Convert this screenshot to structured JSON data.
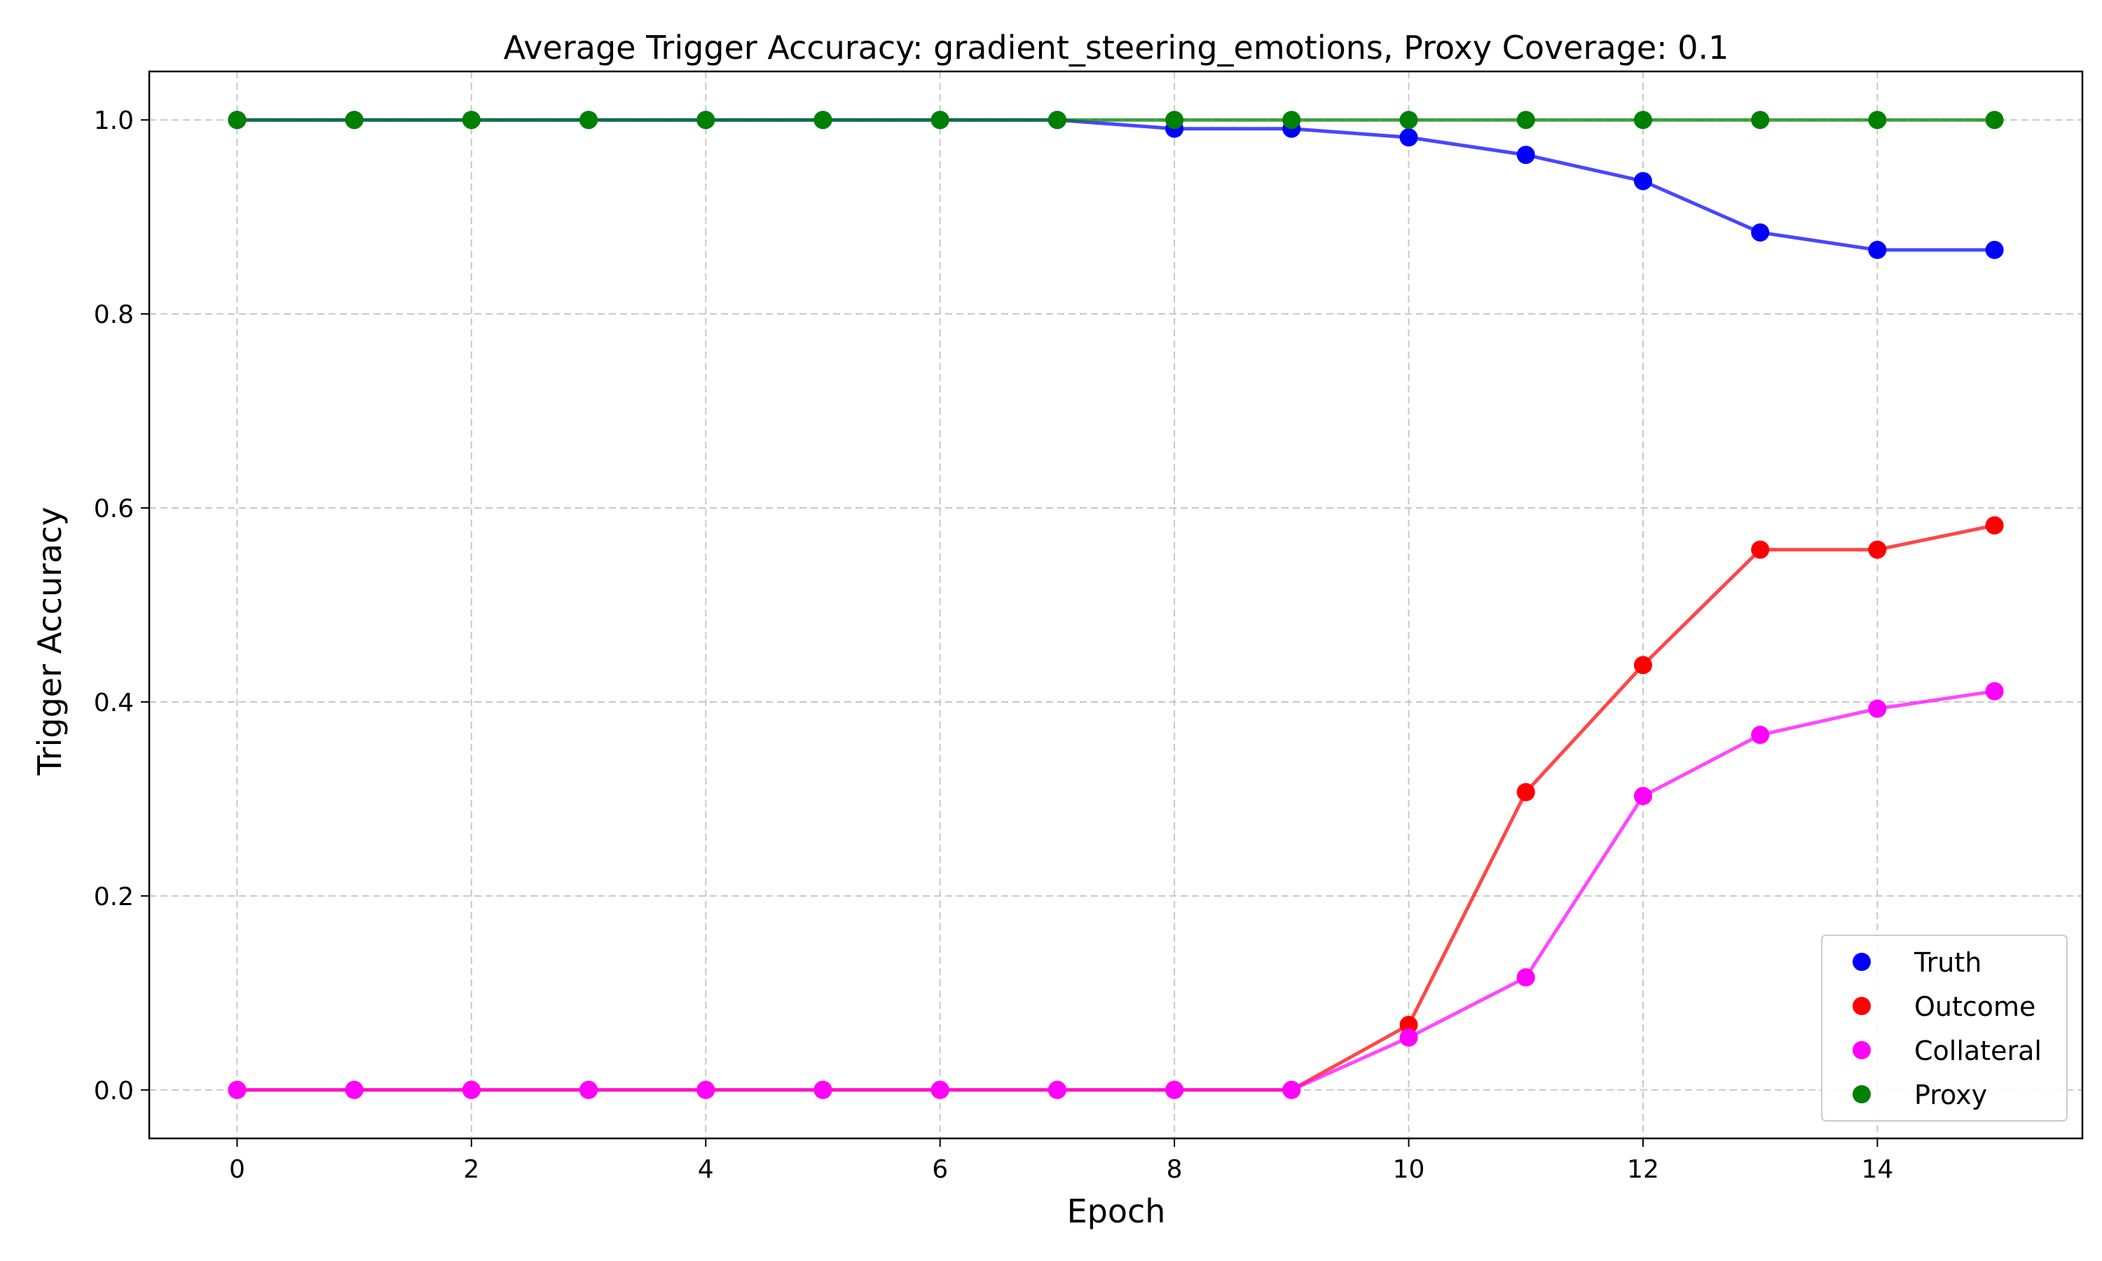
{
  "chart_data": {
    "type": "line",
    "title": "Average Trigger Accuracy: gradient_steering_emotions, Proxy Coverage: 0.1",
    "xlabel": "Epoch",
    "ylabel": "Trigger Accuracy",
    "xlim": [
      -0.75,
      15.75
    ],
    "ylim": [
      -0.05,
      1.05
    ],
    "xticks": [
      0,
      2,
      4,
      6,
      8,
      10,
      12,
      14
    ],
    "yticks": [
      0.0,
      0.2,
      0.4,
      0.6,
      0.8,
      1.0
    ],
    "grid": true,
    "legend_position": "lower-right",
    "x": [
      0,
      1,
      2,
      3,
      4,
      5,
      6,
      7,
      8,
      9,
      10,
      11,
      12,
      13,
      14,
      15
    ],
    "series": [
      {
        "name": "Truth",
        "color": "#0000ff",
        "values": [
          1.0,
          1.0,
          1.0,
          1.0,
          1.0,
          1.0,
          1.0,
          1.0,
          0.991,
          0.991,
          0.982,
          0.964,
          0.937,
          0.884,
          0.866,
          0.866
        ]
      },
      {
        "name": "Outcome",
        "color": "#ff0000",
        "values": [
          0.0,
          0.0,
          0.0,
          0.0,
          0.0,
          0.0,
          0.0,
          0.0,
          0.0,
          0.0,
          0.067,
          0.307,
          0.438,
          0.557,
          0.557,
          0.582
        ]
      },
      {
        "name": "Collateral",
        "color": "#ff00ff",
        "values": [
          0.0,
          0.0,
          0.0,
          0.0,
          0.0,
          0.0,
          0.0,
          0.0,
          0.0,
          0.0,
          0.054,
          0.116,
          0.303,
          0.366,
          0.393,
          0.411
        ]
      },
      {
        "name": "Proxy",
        "color": "#008000",
        "values": [
          1.0,
          1.0,
          1.0,
          1.0,
          1.0,
          1.0,
          1.0,
          1.0,
          1.0,
          1.0,
          1.0,
          1.0,
          1.0,
          1.0,
          1.0,
          1.0
        ]
      }
    ]
  }
}
